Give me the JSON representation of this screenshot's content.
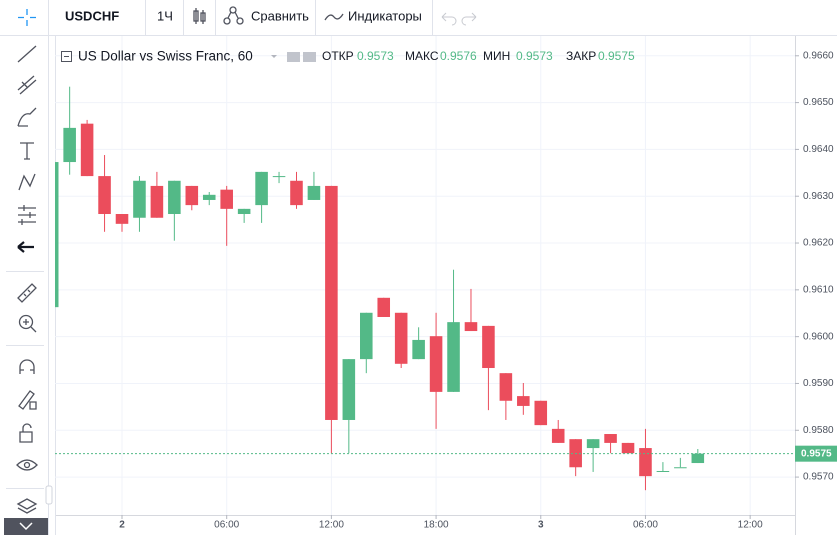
{
  "toolbar": {
    "symbol": "USDCHF",
    "interval": "1Ч",
    "compare": "Сравнить",
    "indicators": "Индикаторы"
  },
  "chart_data": {
    "type": "candlestick",
    "title": "US Dollar vs Swiss Franc, 60",
    "ohlc_labels": {
      "open": "ОТКР",
      "high": "МАКС",
      "low": "МИН",
      "close": "ЗАКР"
    },
    "ohlc_values": {
      "open": 0.9573,
      "high": 0.9576,
      "low": 0.9573,
      "close": 0.9575
    },
    "up_color": "#53b987",
    "down_color": "#eb4d5c",
    "x": [
      -4,
      -3,
      -2,
      -1,
      0,
      1,
      2,
      3,
      4,
      5,
      6,
      7,
      8,
      9,
      10,
      11,
      12,
      13,
      14,
      15,
      16,
      17,
      18,
      19,
      20,
      21,
      22,
      23,
      24,
      25,
      26,
      27,
      28,
      29,
      30,
      31,
      32,
      33
    ],
    "open": [
      0.96063,
      0.96373,
      0.96455,
      0.96343,
      0.96262,
      0.96254,
      0.96322,
      0.96262,
      0.96322,
      0.96292,
      0.96314,
      0.96262,
      0.96281,
      0.96343,
      0.96333,
      0.96292,
      0.96322,
      0.95822,
      0.95952,
      0.96083,
      0.96051,
      0.95952,
      0.96001,
      0.95882,
      0.96031,
      0.96023,
      0.95922,
      0.95873,
      0.95863,
      0.95803,
      0.95781,
      0.95762,
      0.95792,
      0.95773,
      0.95762,
      0.95713,
      0.95721,
      0.9573
    ],
    "high": [
      0.96373,
      0.96534,
      0.96463,
      0.96388,
      0.96262,
      0.96343,
      0.96352,
      0.96333,
      0.96322,
      0.96309,
      0.96322,
      0.96273,
      0.96352,
      0.96352,
      0.96352,
      0.96352,
      0.96322,
      0.95952,
      0.96051,
      0.96083,
      0.96051,
      0.9602,
      0.96051,
      0.96143,
      0.96102,
      0.96023,
      0.95922,
      0.95901,
      0.95863,
      0.95822,
      0.95781,
      0.95781,
      0.95792,
      0.95773,
      0.95803,
      0.95732,
      0.95741,
      0.9576
    ],
    "low": [
      0.96063,
      0.96346,
      0.96343,
      0.96224,
      0.96224,
      0.96224,
      0.96254,
      0.96205,
      0.9627,
      0.96281,
      0.96194,
      0.96243,
      0.96243,
      0.96328,
      0.96273,
      0.96292,
      0.95751,
      0.95751,
      0.95922,
      0.96042,
      0.95933,
      0.95952,
      0.95803,
      0.95882,
      0.96012,
      0.95843,
      0.95822,
      0.95833,
      0.95811,
      0.95773,
      0.95702,
      0.95711,
      0.95751,
      0.95751,
      0.95672,
      0.95713,
      0.95721,
      0.9573
    ],
    "close": [
      0.96373,
      0.96446,
      0.96343,
      0.96262,
      0.96241,
      0.96333,
      0.96254,
      0.96333,
      0.96281,
      0.96303,
      0.96273,
      0.96273,
      0.96352,
      0.96343,
      0.96281,
      0.96322,
      0.95822,
      0.95952,
      0.96051,
      0.96042,
      0.95942,
      0.95993,
      0.95882,
      0.96031,
      0.96012,
      0.95933,
      0.95863,
      0.95852,
      0.95811,
      0.95773,
      0.95721,
      0.95781,
      0.95773,
      0.95751,
      0.95702,
      0.95713,
      0.95721,
      0.9575
    ],
    "xlim": [
      -3.84,
      38.57
    ],
    "xticks": [
      {
        "value": 0,
        "label": "2"
      },
      {
        "value": 6,
        "label": "06:00"
      },
      {
        "value": 12,
        "label": "12:00"
      },
      {
        "value": 18,
        "label": "18:00"
      },
      {
        "value": 24,
        "label": "3"
      },
      {
        "value": 30,
        "label": "06:00"
      },
      {
        "value": 36,
        "label": "12:00"
      }
    ],
    "ylim": [
      0.95619,
      0.96638
    ],
    "yticks": [
      {
        "value": 0.957,
        "label": "0.9570"
      },
      {
        "value": 0.958,
        "label": "0.9580"
      },
      {
        "value": 0.959,
        "label": "0.9590"
      },
      {
        "value": 0.96,
        "label": "0.9600"
      },
      {
        "value": 0.961,
        "label": "0.9610"
      },
      {
        "value": 0.962,
        "label": "0.9620"
      },
      {
        "value": 0.963,
        "label": "0.9630"
      },
      {
        "value": 0.964,
        "label": "0.9640"
      },
      {
        "value": 0.965,
        "label": "0.9650"
      },
      {
        "value": 0.966,
        "label": "0.9660"
      }
    ],
    "last_price": 0.9575,
    "grid": true
  }
}
